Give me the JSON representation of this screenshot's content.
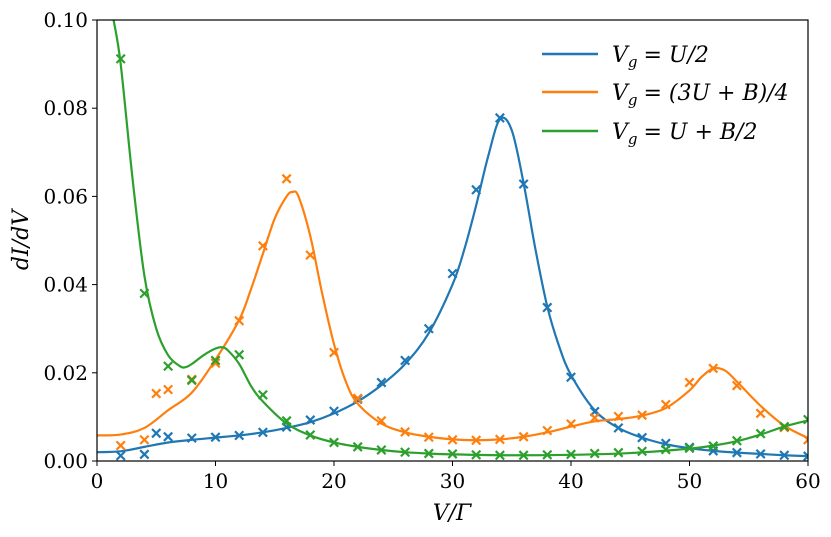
{
  "chart_data": {
    "type": "line",
    "xlabel": "V/Γ",
    "ylabel": "dI/dV",
    "xlim": [
      0,
      60
    ],
    "ylim": [
      0,
      0.1
    ],
    "x_ticks": [
      "0",
      "10",
      "20",
      "30",
      "40",
      "50",
      "60"
    ],
    "y_ticks": [
      "0.00",
      "0.02",
      "0.04",
      "0.06",
      "0.08",
      "0.10"
    ],
    "grid": false,
    "legend_position": "top-right",
    "series": [
      {
        "name": "V_g = U/2",
        "color": "#1f77b4",
        "line": {
          "x": [
            0,
            2,
            4,
            6,
            8,
            10,
            12,
            14,
            16,
            18,
            20,
            22,
            24,
            26,
            28,
            30,
            31,
            32,
            33,
            34,
            35,
            36,
            37,
            38,
            39,
            40,
            42,
            44,
            46,
            48,
            50,
            52,
            54,
            56,
            58,
            60
          ],
          "y": [
            0.002,
            0.0022,
            0.0032,
            0.0042,
            0.0048,
            0.0053,
            0.0058,
            0.0065,
            0.0075,
            0.0088,
            0.0108,
            0.0135,
            0.0172,
            0.022,
            0.029,
            0.04,
            0.048,
            0.058,
            0.069,
            0.0775,
            0.075,
            0.063,
            0.048,
            0.035,
            0.026,
            0.0195,
            0.0115,
            0.0075,
            0.0053,
            0.0038,
            0.0029,
            0.0023,
            0.0019,
            0.0016,
            0.0013,
            0.0011
          ]
        },
        "markers": {
          "x": [
            2,
            4,
            5,
            6,
            8,
            10,
            12,
            14,
            16,
            18,
            20,
            22,
            24,
            26,
            28,
            30,
            32,
            34,
            36,
            38,
            40,
            42,
            44,
            46,
            48,
            50,
            52,
            54,
            56,
            58,
            60
          ],
          "y": [
            0.0012,
            0.0015,
            0.0063,
            0.0055,
            0.0052,
            0.0054,
            0.0058,
            0.0065,
            0.0077,
            0.0093,
            0.0113,
            0.014,
            0.0178,
            0.0228,
            0.03,
            0.0425,
            0.0615,
            0.0778,
            0.0628,
            0.0348,
            0.019,
            0.0112,
            0.0075,
            0.0053,
            0.004,
            0.0031,
            0.0023,
            0.0019,
            0.0016,
            0.0013,
            0.0011
          ]
        }
      },
      {
        "name": "V_g = (3U + B)/4",
        "color": "#ff7f0e",
        "line": {
          "x": [
            0,
            2,
            4,
            6,
            8,
            10,
            12,
            13,
            14,
            15,
            16,
            16.5,
            17,
            18,
            19,
            20,
            21,
            22,
            24,
            26,
            28,
            30,
            32,
            34,
            36,
            38,
            40,
            42,
            44,
            46,
            48,
            50,
            51,
            52,
            53,
            54,
            56,
            58,
            60
          ],
          "y": [
            0.0058,
            0.006,
            0.0075,
            0.0115,
            0.0155,
            0.023,
            0.032,
            0.039,
            0.047,
            0.055,
            0.06,
            0.061,
            0.06,
            0.051,
            0.038,
            0.0265,
            0.018,
            0.013,
            0.0085,
            0.0065,
            0.0055,
            0.0049,
            0.0047,
            0.0049,
            0.0055,
            0.0065,
            0.0078,
            0.009,
            0.0095,
            0.0103,
            0.012,
            0.016,
            0.019,
            0.021,
            0.0205,
            0.018,
            0.0125,
            0.008,
            0.0052
          ]
        },
        "markers": {
          "x": [
            2,
            4,
            5,
            6,
            8,
            10,
            12,
            14,
            16,
            18,
            20,
            22,
            24,
            26,
            28,
            30,
            32,
            34,
            36,
            38,
            40,
            42,
            44,
            46,
            48,
            50,
            52,
            54,
            56,
            58,
            60
          ],
          "y": [
            0.0035,
            0.0048,
            0.0153,
            0.0162,
            0.0185,
            0.0222,
            0.0318,
            0.0488,
            0.064,
            0.0467,
            0.0246,
            0.0142,
            0.0091,
            0.0066,
            0.0054,
            0.0048,
            0.0047,
            0.0049,
            0.0055,
            0.0069,
            0.0084,
            0.0098,
            0.0101,
            0.0104,
            0.0128,
            0.0178,
            0.021,
            0.0171,
            0.0108,
            0.0076,
            0.0048
          ]
        }
      },
      {
        "name": "V_g = U + B/2",
        "color": "#2ca02c",
        "line": {
          "x": [
            1.4,
            2,
            3,
            4,
            5,
            6,
            7,
            7.5,
            8,
            9,
            10,
            10.5,
            11,
            12,
            13,
            14,
            16,
            18,
            20,
            22,
            24,
            26,
            28,
            30,
            35,
            40,
            45,
            50,
            52,
            54,
            56,
            58,
            60
          ],
          "y": [
            0.1,
            0.09,
            0.064,
            0.042,
            0.03,
            0.024,
            0.0215,
            0.0213,
            0.022,
            0.024,
            0.0255,
            0.0258,
            0.0252,
            0.022,
            0.017,
            0.0135,
            0.0085,
            0.0058,
            0.0042,
            0.0032,
            0.0025,
            0.002,
            0.0017,
            0.0015,
            0.0013,
            0.0014,
            0.0018,
            0.0028,
            0.0035,
            0.0045,
            0.006,
            0.0078,
            0.0092
          ]
        },
        "markers": {
          "x": [
            2,
            4,
            6,
            8,
            10,
            12,
            14,
            16,
            18,
            20,
            22,
            24,
            26,
            28,
            30,
            32,
            34,
            36,
            38,
            40,
            42,
            44,
            46,
            48,
            50,
            52,
            54,
            56,
            58,
            60
          ],
          "y": [
            0.0912,
            0.038,
            0.0215,
            0.0183,
            0.0228,
            0.0241,
            0.015,
            0.0091,
            0.0059,
            0.0042,
            0.0032,
            0.0025,
            0.002,
            0.0017,
            0.0016,
            0.0014,
            0.0013,
            0.0013,
            0.0014,
            0.0015,
            0.0017,
            0.0019,
            0.0022,
            0.0026,
            0.0029,
            0.0034,
            0.0046,
            0.0062,
            0.0078,
            0.0094
          ]
        }
      }
    ]
  }
}
